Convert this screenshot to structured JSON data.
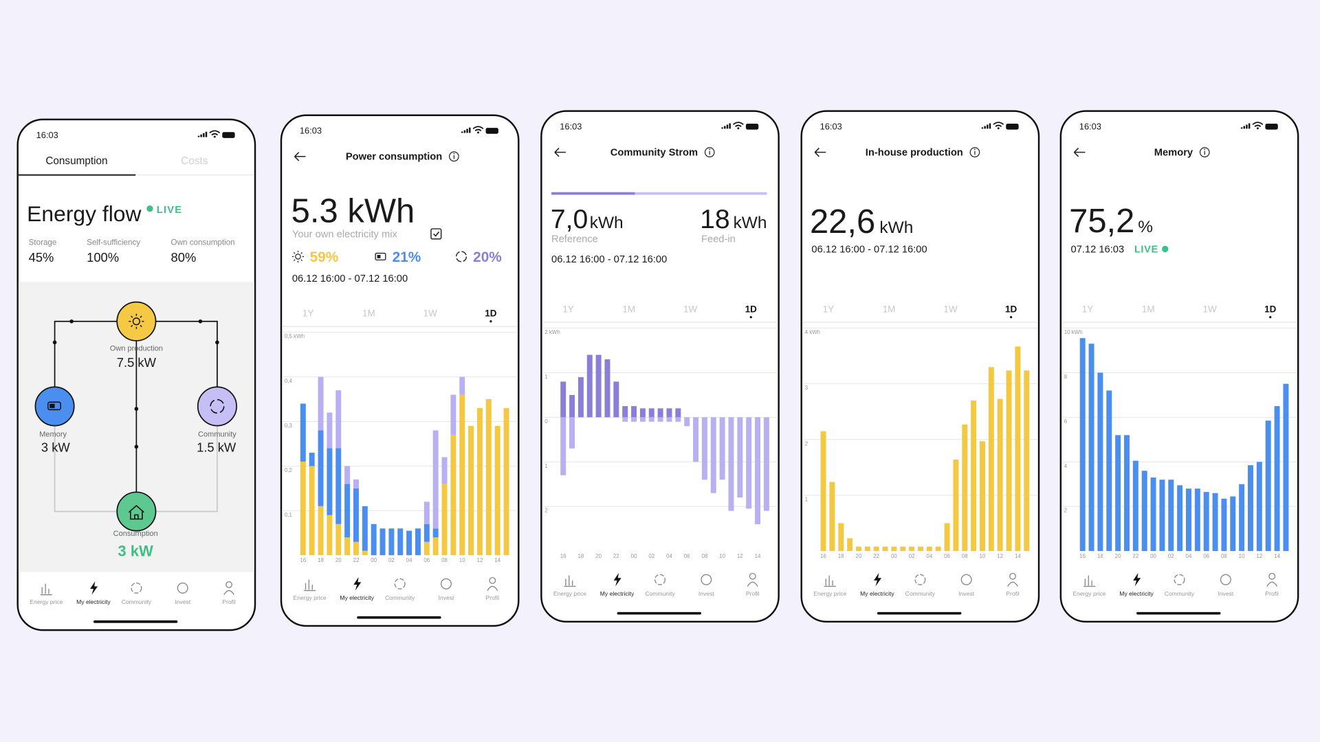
{
  "phones": [
    {
      "time": "16:03",
      "tabs": [
        "Consumption",
        "Costs"
      ],
      "title": "Energy flow",
      "live": "LIVE",
      "stats": [
        {
          "label": "Storage",
          "value": "45%"
        },
        {
          "label": "Self-sufficiency",
          "value": "100%"
        },
        {
          "label": "Own consumption",
          "value": "80%"
        }
      ],
      "nodes": [
        {
          "label": "Own production",
          "value": "7.5 kW"
        },
        {
          "label": "Memory",
          "value": "3 kW"
        },
        {
          "label": "Community",
          "value": "1.5 kW"
        },
        {
          "label": "Consumption",
          "value": "3 kW"
        }
      ],
      "nav": [
        "Energy price",
        "My electricity",
        "Community",
        "Invest",
        "Profil"
      ]
    },
    {
      "time": "16:03",
      "title": "Power consumption",
      "value": "5.3 kWh",
      "subtitle": "Your own electricity mix",
      "mix": [
        "59%",
        "21%",
        "20%"
      ],
      "period": "06.12 16:00 - 07.12 16:00",
      "ranges": [
        "1Y",
        "1M",
        "1W",
        "1D"
      ],
      "nav": [
        "Energy price",
        "My electricity",
        "Community",
        "Invest",
        "Profil"
      ]
    },
    {
      "time": "16:03",
      "title": "Community Strom",
      "figures": [
        {
          "value": "7,0",
          "unit": "kWh",
          "label": "Reference"
        },
        {
          "value": "18",
          "unit": "kWh",
          "label": "Feed-in"
        }
      ],
      "period": "06.12 16:00 - 07.12 16:00",
      "ranges": [
        "1Y",
        "1M",
        "1W",
        "1D"
      ],
      "nav": [
        "Energy price",
        "My electricity",
        "Community",
        "Invest",
        "Profil"
      ]
    },
    {
      "time": "16:03",
      "title": "In-house production",
      "value": "22,6",
      "unit": "kWh",
      "period": "06.12 16:00 - 07.12 16:00",
      "ranges": [
        "1Y",
        "1M",
        "1W",
        "1D"
      ],
      "nav": [
        "Energy price",
        "My electricity",
        "Community",
        "Invest",
        "Profil"
      ]
    },
    {
      "time": "16:03",
      "title": "Memory",
      "value": "75,2",
      "unit": "%",
      "period": "07.12 16:03",
      "live": "LIVE",
      "ranges": [
        "1Y",
        "1M",
        "1W",
        "1D"
      ],
      "nav": [
        "Energy price",
        "My electricity",
        "Community",
        "Invest",
        "Profil"
      ]
    }
  ],
  "chart_data": [
    {
      "type": "bar",
      "stacked": true,
      "grid": true,
      "categories": [
        "16",
        null,
        "18",
        null,
        "20",
        null,
        "22",
        null,
        "00",
        null,
        "02",
        null,
        "04",
        null,
        "06",
        null,
        "08",
        null,
        "10",
        null,
        "12",
        null,
        "14",
        null
      ],
      "series": [
        {
          "color": "#f5c842",
          "values": [
            0.21,
            0.2,
            0.11,
            0.09,
            0.07,
            0.04,
            0.03,
            0.01,
            0,
            0,
            0,
            0,
            0,
            0,
            0.03,
            0.04,
            0.16,
            0.27,
            0.36,
            0.29,
            0.33,
            0.35,
            0.29,
            0.33
          ]
        },
        {
          "color": "#4a8ff0",
          "values": [
            0.13,
            0.03,
            0.17,
            0.15,
            0.17,
            0.12,
            0.12,
            0.1,
            0.07,
            0.06,
            0.06,
            0.06,
            0.055,
            0.06,
            0.04,
            0.02,
            0,
            0,
            0,
            0,
            0,
            0,
            0,
            0
          ]
        },
        {
          "color": "#b8b0f2",
          "values": [
            0,
            0,
            0.12,
            0.08,
            0.13,
            0.04,
            0.02,
            0,
            0,
            0,
            0,
            0,
            0,
            0,
            0.05,
            0.22,
            0.06,
            0.09,
            0.04,
            0,
            0,
            0,
            0,
            0
          ]
        }
      ],
      "ylim": [
        0,
        0.5
      ],
      "yticks": [
        {
          "value": 0.1,
          "label": "0,1"
        },
        {
          "value": 0.2,
          "label": "0,2"
        },
        {
          "value": 0.3,
          "label": "0,3"
        },
        {
          "value": 0.4,
          "label": "0,4"
        },
        {
          "value": 0.5,
          "label": "0,5 kWh"
        }
      ]
    },
    {
      "type": "bar",
      "stacked": true,
      "grid": true,
      "categories": [
        "16",
        null,
        "18",
        null,
        "20",
        null,
        "22",
        null,
        "00",
        null,
        "02",
        null,
        "04",
        null,
        "06",
        null,
        "08",
        null,
        "10",
        null,
        "12",
        null,
        "14",
        null
      ],
      "series": [
        {
          "color": "#8b7ed8",
          "values": [
            0.8,
            0.5,
            0.9,
            1.4,
            1.4,
            1.3,
            0.8,
            0.25,
            0.25,
            0.2,
            0.2,
            0.2,
            0.2,
            0.2,
            0,
            0,
            0,
            0,
            0,
            0,
            0,
            0,
            0,
            0
          ]
        },
        {
          "color": "#b8b0f2",
          "values": [
            -1.3,
            -0.7,
            0,
            0,
            0,
            0,
            0,
            -0.1,
            -0.1,
            -0.1,
            -0.1,
            -0.1,
            -0.1,
            -0.1,
            -0.2,
            -1.0,
            -1.4,
            -1.7,
            -1.4,
            -2.1,
            -1.8,
            -2.05,
            -2.4,
            -2.1
          ]
        }
      ],
      "ylim": [
        -3,
        2
      ],
      "yticks": [
        {
          "value": -2,
          "label": "2"
        },
        {
          "value": -1,
          "label": "1"
        },
        0,
        1,
        {
          "value": 2,
          "label": "2 kWh"
        }
      ]
    },
    {
      "type": "bar",
      "grid": true,
      "categories": [
        "16",
        null,
        "18",
        null,
        "20",
        null,
        "22",
        null,
        "00",
        null,
        "02",
        null,
        "04",
        null,
        "06",
        null,
        "08",
        null,
        "10",
        null,
        "12",
        null,
        "14",
        null
      ],
      "series": [
        {
          "color": "#f5c842",
          "values": [
            2.15,
            1.24,
            0.5,
            0.23,
            0.08,
            0.08,
            0.08,
            0.08,
            0.08,
            0.08,
            0.08,
            0.08,
            0.08,
            0.08,
            0.5,
            1.64,
            2.27,
            2.7,
            1.97,
            3.3,
            2.73,
            3.24,
            3.67,
            3.24
          ]
        }
      ],
      "ylim": [
        0,
        4
      ],
      "yticks": [
        1,
        2,
        3,
        {
          "value": 4,
          "label": "4 kWh"
        }
      ]
    },
    {
      "type": "bar",
      "grid": true,
      "categories": [
        "16",
        null,
        "18",
        null,
        "20",
        null,
        "22",
        null,
        "00",
        null,
        "02",
        null,
        "04",
        null,
        "06",
        null,
        "08",
        null,
        "10",
        null,
        "12",
        null,
        "14",
        null
      ],
      "series": [
        {
          "color": "#4a8ff0",
          "values": [
            9.55,
            9.3,
            8.0,
            7.2,
            5.2,
            5.2,
            4.05,
            3.6,
            3.3,
            3.2,
            3.2,
            2.95,
            2.8,
            2.8,
            2.65,
            2.6,
            2.35,
            2.45,
            3.0,
            3.85,
            4.0,
            5.85,
            6.5,
            7.5
          ]
        }
      ],
      "ylim": [
        0,
        10
      ],
      "yticks": [
        2,
        4,
        6,
        8,
        {
          "value": 10,
          "label": "10 kWh"
        }
      ]
    }
  ]
}
